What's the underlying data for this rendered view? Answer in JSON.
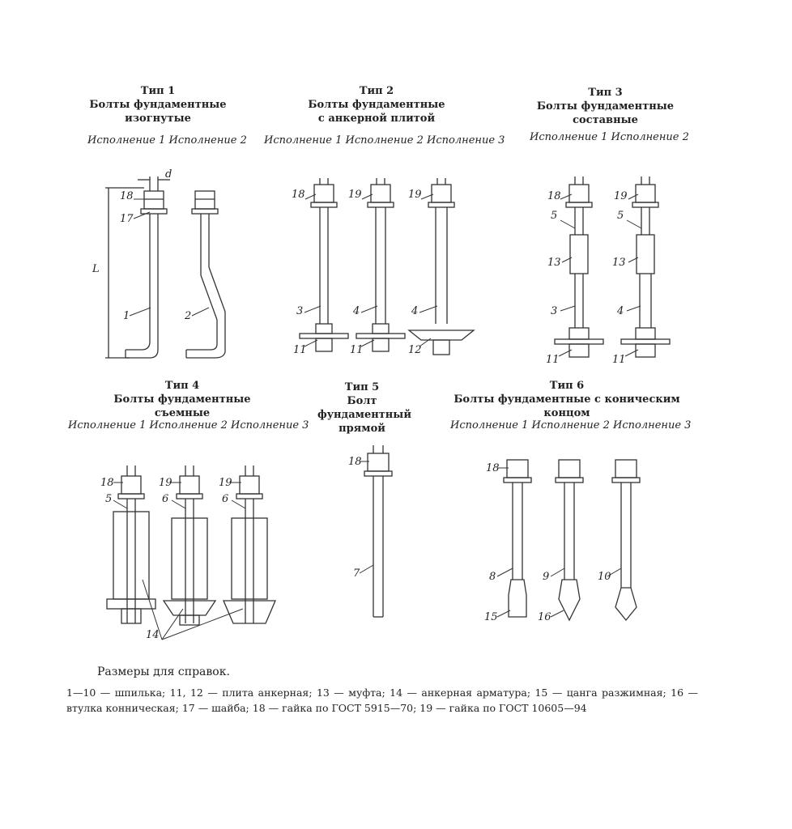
{
  "types": [
    {
      "title": "Тип 1",
      "subtitle": "Болты фундаментные изогнутые",
      "versions": "Исполнение 1 Исполнение 2"
    },
    {
      "title": "Тип 2",
      "subtitle": "Болты фундаментные с анкерной плитой",
      "versions": "Исполнение 1 Исполнение 2 Исполнение 3"
    },
    {
      "title": "Тип 3",
      "subtitle": "Болты фундаментные составные",
      "versions": "Исполнение 1 Исполнение 2"
    },
    {
      "title": "Тип 4",
      "subtitle": "Болты фундаментные съемные",
      "versions": "Исполнение 1 Исполнение 2 Исполнение 3"
    },
    {
      "title": "Тип 5",
      "subtitle": "Болт фундаментный прямой",
      "versions": ""
    },
    {
      "title": "Тип 6",
      "subtitle": "Болты фундаментные с коническим концом",
      "versions": "Исполнение 1 Исполнение 2 Исполнение 3"
    }
  ],
  "dimension_labels": {
    "d": "d",
    "L": "L"
  },
  "callouts": {
    "t1": [
      "18",
      "17",
      "1",
      "2"
    ],
    "t2": [
      "18",
      "19",
      "19",
      "3",
      "4",
      "4",
      "11",
      "11",
      "12"
    ],
    "t3": [
      "18",
      "19",
      "5",
      "5",
      "13",
      "13",
      "3",
      "4",
      "11",
      "11"
    ],
    "t4": [
      "18",
      "19",
      "19",
      "5",
      "6",
      "6",
      "14"
    ],
    "t5": [
      "18",
      "7"
    ],
    "t6": [
      "18",
      "8",
      "9",
      "10",
      "15",
      "16"
    ]
  },
  "note": "Размеры для справок.",
  "legend": "1—10 — шпилька; 11, 12 — плита анкерная; 13 — муфта; 14 — анкерная арматура; 15 — цанга разжимная; 16 — втулка конническая; 17 — шайба; 18 — гайка по ГОСТ 5915—70; 19 — гайка по ГОСТ 10605—94"
}
